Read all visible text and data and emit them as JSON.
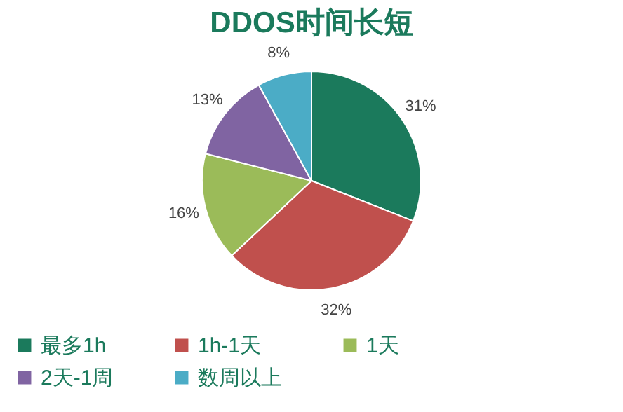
{
  "chart_data": {
    "type": "pie",
    "title": "DDOS时间长短",
    "categories": [
      "最多1h",
      "1h-1天",
      "1天",
      "2天-1周",
      "数周以上"
    ],
    "values": [
      31,
      32,
      16,
      13,
      8
    ],
    "value_labels": [
      "31%",
      "32%",
      "16%",
      "13%",
      "8%"
    ],
    "colors": [
      "#1b7a5c",
      "#c0504d",
      "#9bbb59",
      "#8064a2",
      "#4bacc6"
    ],
    "legend": "bottom"
  }
}
